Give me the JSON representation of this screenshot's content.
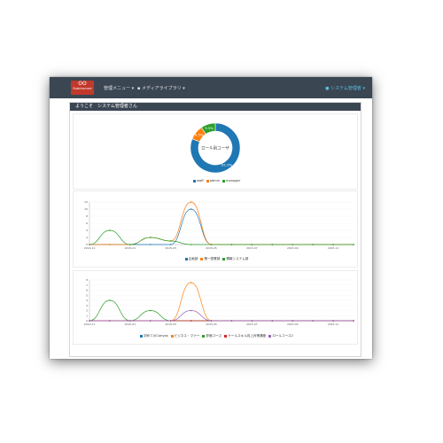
{
  "navbar": {
    "logo_text": "Rubricsmart",
    "admin_menu": "管理メニュー ▾",
    "media_library": "メディアライブラリ ▾",
    "user_menu": "システム管理者 ▾"
  },
  "welcome": "ようこそ　システム管理者さん",
  "colors": {
    "blue": "#1f77b4",
    "orange": "#ff7f0e",
    "green": "#2ca02c",
    "red": "#d62728",
    "purple": "#9467bd"
  },
  "chart_data": [
    {
      "type": "pie",
      "title": "ロール別ユーザ",
      "categories": [
        "staff",
        "admin",
        "manager"
      ],
      "values": [
        81.0,
        9.5,
        9.5
      ],
      "labels": [
        "81.0%",
        "9.5%",
        "9.5%"
      ],
      "legend": "bottom"
    },
    {
      "type": "line",
      "x": [
        "2014-11",
        "2014-12",
        "2015-01",
        "2015-02",
        "2015-03",
        "2015-04",
        "2015-05",
        "2015-06",
        "2015-07",
        "2015-08",
        "2015-09",
        "2015-10",
        "2015-11",
        "2015-12"
      ],
      "xticks": [
        "2014-11",
        "2015-01",
        "2015-03",
        "2015-05",
        "2015-07",
        "2015-09",
        "2015-11"
      ],
      "ylim": [
        0,
        12
      ],
      "yticks": [
        0,
        2,
        4,
        6,
        8,
        10,
        12
      ],
      "series": [
        {
          "name": "企画部",
          "values": [
            0,
            0,
            0,
            0,
            0,
            10,
            0,
            0,
            0,
            0,
            0,
            0,
            0,
            0
          ]
        },
        {
          "name": "第一営業部",
          "values": [
            0,
            0,
            0,
            2,
            1,
            12,
            0,
            0,
            0,
            0,
            0,
            0,
            0,
            0
          ]
        },
        {
          "name": "情報システム部",
          "values": [
            0,
            4,
            0,
            2,
            1,
            0,
            0,
            0,
            0,
            0,
            0,
            0,
            0,
            0
          ]
        }
      ],
      "legend": "bottom"
    },
    {
      "type": "line",
      "x": [
        "2014-11",
        "2014-12",
        "2015-01",
        "2015-02",
        "2015-03",
        "2015-04",
        "2015-05",
        "2015-06",
        "2015-07",
        "2015-08",
        "2015-09",
        "2015-10",
        "2015-11",
        "2015-12"
      ],
      "xticks": [
        "2014-11",
        "2015-01",
        "2015-03",
        "2015-05",
        "2015-07",
        "2015-09",
        "2015-11"
      ],
      "ylim": [
        0,
        8
      ],
      "yticks": [
        0,
        1,
        2,
        3,
        4,
        5,
        6,
        7,
        8
      ],
      "series": [
        {
          "name": "初めてのCanvas",
          "values": [
            0,
            0,
            0,
            0,
            0,
            0,
            0,
            0,
            0,
            0,
            0,
            0,
            0,
            0
          ]
        },
        {
          "name": "ビジネス・マナー",
          "values": [
            0,
            0,
            0,
            0,
            0,
            7.5,
            0,
            0,
            0,
            0,
            0,
            0,
            0,
            0
          ]
        },
        {
          "name": "評価コース",
          "values": [
            0,
            4,
            0,
            2,
            0,
            0,
            0,
            0,
            0,
            0,
            0,
            0,
            0,
            0
          ]
        },
        {
          "name": "ケールスキル向上対策講座",
          "values": [
            0,
            0,
            0,
            0,
            0,
            0,
            0,
            0,
            0,
            0,
            0,
            0,
            0,
            0
          ]
        },
        {
          "name": "ロールコース2",
          "values": [
            0,
            0,
            0,
            0,
            0,
            2,
            0,
            0,
            0,
            0,
            0,
            0,
            0,
            0
          ]
        }
      ],
      "legend": "bottom"
    }
  ]
}
